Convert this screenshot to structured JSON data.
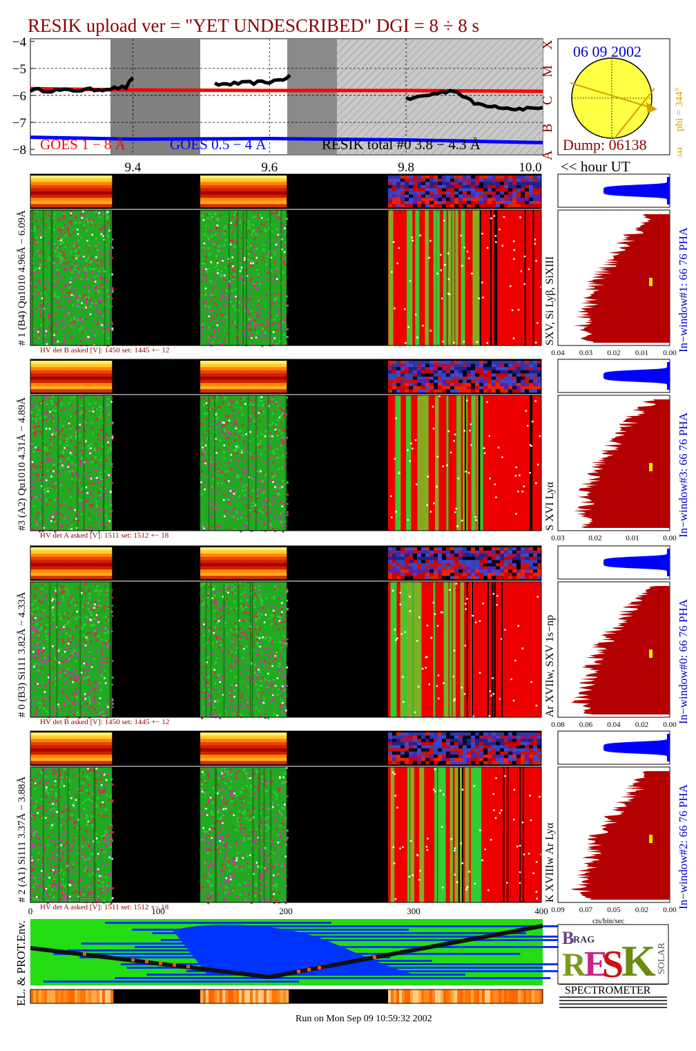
{
  "header": {
    "title": "RESIK upload ver = \"YET UNDESCRIBED\"  DGI =   8 ÷   8 s"
  },
  "footer": {
    "run_info": "Run on Mon Sep 09 10:59:32 2002"
  },
  "colors": {
    "goes_long": "#ff0000",
    "goes_short": "#0000ff",
    "resik_total": "#000000",
    "title": "#8b0000",
    "sun": "#ffff44",
    "pha": "#0000ff",
    "hist": "#b30000"
  },
  "chart_data": [
    {
      "type": "line",
      "title": "",
      "ylabel": "",
      "xlabel": "<< hour UT",
      "x_ticks": [
        "9.4",
        "9.6",
        "9.8",
        "10.0"
      ],
      "xlim": [
        9.25,
        10.0
      ],
      "y_ticks": [
        "−4",
        "−5",
        "−6",
        "−7",
        "−8"
      ],
      "ylim": [
        -8.2,
        -3.9
      ],
      "right_axis_labels": [
        "X",
        "M",
        "C",
        "B",
        "A"
      ],
      "legend": [
        "GOES 1 − 8 Å",
        "GOES 0.5 − 4 Å",
        "RESIK total #0  3.8 − 4.3 Å"
      ],
      "series": [
        {
          "name": "GOES 1 − 8 Å",
          "x": [
            9.25,
            9.4,
            9.6,
            9.8,
            10.0
          ],
          "values": [
            -5.75,
            -5.8,
            -5.82,
            -5.82,
            -5.85
          ]
        },
        {
          "name": "GOES 0.5 − 4 Å",
          "x": [
            9.25,
            9.4,
            9.6,
            9.8,
            10.0
          ],
          "values": [
            -7.55,
            -7.62,
            -7.6,
            -7.65,
            -7.75
          ]
        },
        {
          "name": "RESIK total #0  3.8 − 4.3 Å",
          "x": [
            9.25,
            9.3,
            9.35,
            9.39,
            9.4,
            9.52,
            9.56,
            9.6,
            9.62,
            9.63,
            9.8,
            9.84,
            9.87,
            9.9,
            9.93,
            9.96,
            10.0
          ],
          "values": [
            -5.8,
            -5.82,
            -5.78,
            -5.7,
            -5.35,
            -5.6,
            -5.55,
            -5.5,
            -5.4,
            -5.25,
            -6.15,
            -5.95,
            -5.8,
            -6.3,
            -6.4,
            -6.5,
            -6.45
          ]
        }
      ]
    },
    {
      "type": "pie",
      "date": "06 09 2002",
      "dump": "Dump: 06138",
      "phi_label": "phi = 344°",
      "phi_small": "344",
      "phi_deg": 344
    },
    {
      "type": "heatmap",
      "channels": [
        {
          "label": "# 1 (B4) Qu1010 4.96Å − 6.09Å",
          "lines": "SXV, Si Lyβ, SiXIII",
          "hv": "HV det B asked [V]:  1450 set:  1445  +−   12",
          "window": "In−window#1:   66  76  PHA",
          "hist_ticks": [
            "0.04",
            "0.03",
            "0.02",
            "0.01",
            "0.00"
          ],
          "hist_max": 0.04
        },
        {
          "label": "#3 (A2) Qu1010  4.31Å − 4.89Å",
          "lines": "S XVI Lyα",
          "hv": "HV det A asked [V]:  1511 set:  1512  +−   18",
          "window": "In−window#3:   66  76  PHA",
          "hist_ticks": [
            "0.03",
            "0.02",
            "0.01",
            "0.00"
          ],
          "hist_max": 0.03
        },
        {
          "label": "# 0 (B3) Si111  3.82Å − 4.33Å",
          "lines": "Ar XVIIw,  SXV 1s−np",
          "hv": "HV det B asked [V]:  1450 set:  1445  +−   12",
          "window": "In−window#0:   66  76  PHA",
          "hist_ticks": [
            "0.08",
            "0.06",
            "0.04",
            "0.02",
            "0.00"
          ],
          "hist_max": 0.08
        },
        {
          "label": "# 2 (A1) Si111  3.37Å − 3.88Å",
          "lines": "K XVIIIw  Ar Lyα",
          "hv": "HV det A asked [V]:  1511 set:  1512  +−   18",
          "window": "In−window#2:   66  76  PHA",
          "hist_ticks": [
            "0.09",
            "0.07",
            "0.05",
            "0.02",
            "0.00"
          ],
          "hist_max": 0.09
        }
      ],
      "bottom_x_ticks": [
        "0",
        "100",
        "200",
        "300",
        "400"
      ],
      "bottom_xlabel": "cts/bin/sec",
      "env_label": "EL. & PROT.Env."
    }
  ],
  "logo": {
    "text": "SPECTROMETER"
  }
}
